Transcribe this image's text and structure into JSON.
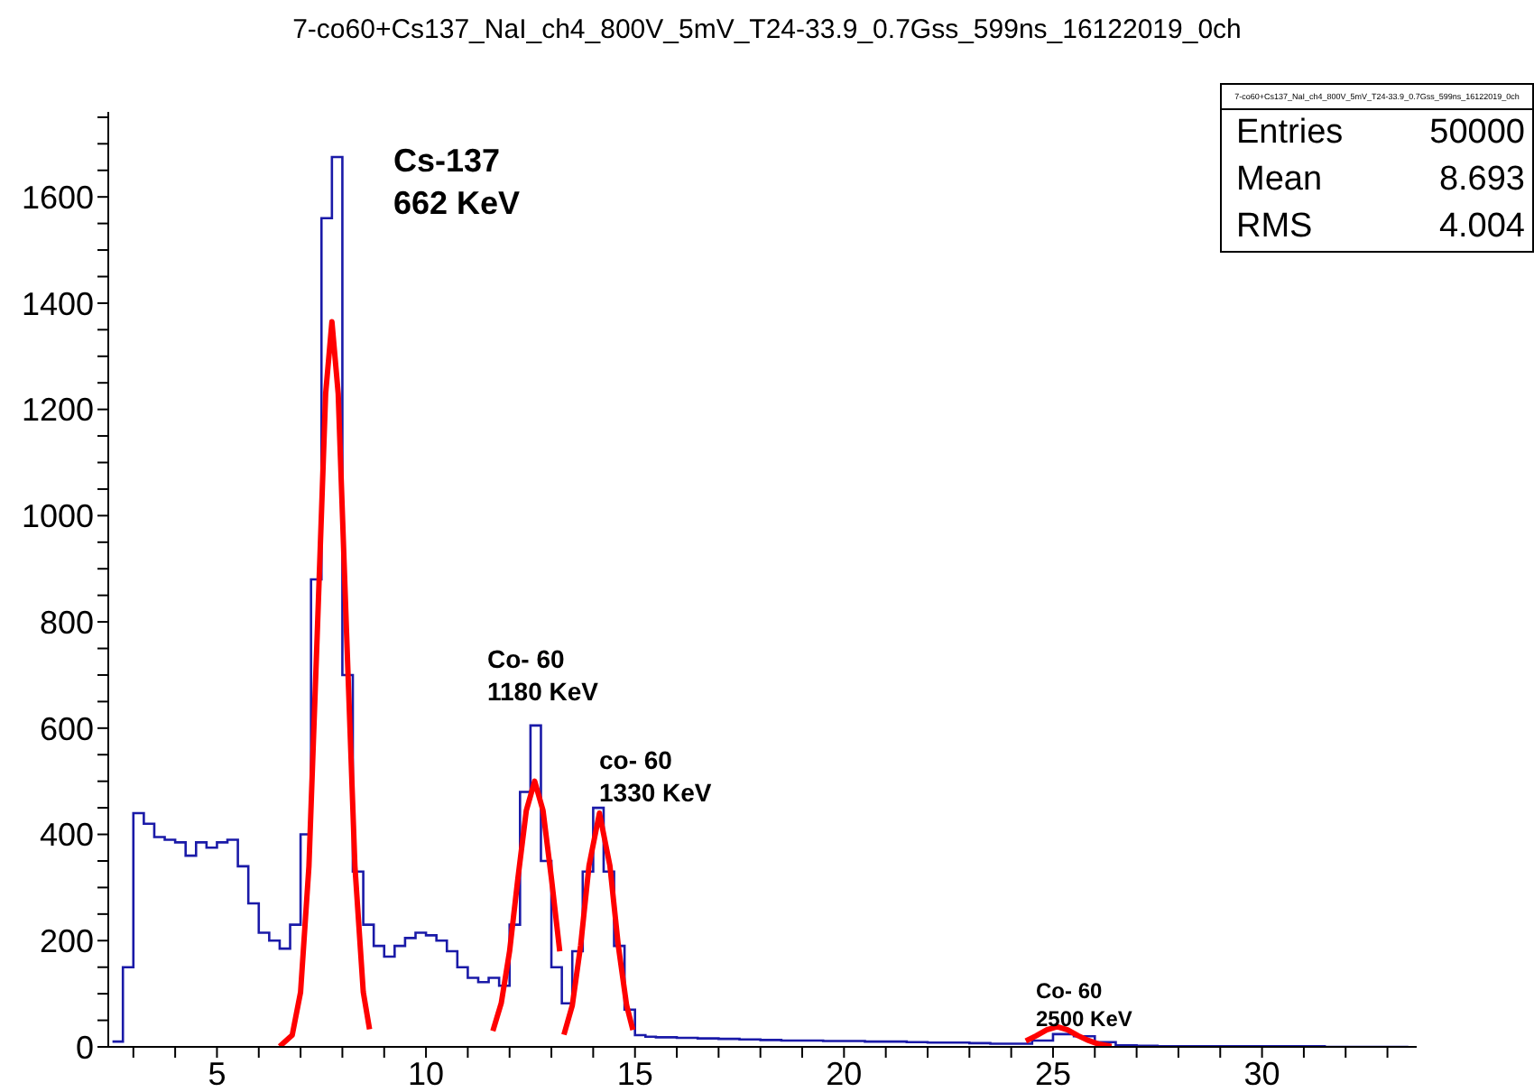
{
  "chart_data": {
    "type": "histogram",
    "title": "7-co60+Cs137_NaI_ch4_800V_5mV_T24-33.9_0.7Gss_599ns_16122019_0ch",
    "xlim": [
      2.4,
      33.7
    ],
    "xticks": [
      {
        "value": 3,
        "label": null
      },
      {
        "value": 4,
        "label": null
      },
      5,
      {
        "value": 6,
        "label": null
      },
      {
        "value": 7,
        "label": null
      },
      {
        "value": 8,
        "label": null
      },
      {
        "value": 9,
        "label": null
      },
      10,
      {
        "value": 11,
        "label": null
      },
      {
        "value": 12,
        "label": null
      },
      {
        "value": 13,
        "label": null
      },
      {
        "value": 14,
        "label": null
      },
      15,
      {
        "value": 16,
        "label": null
      },
      {
        "value": 17,
        "label": null
      },
      {
        "value": 18,
        "label": null
      },
      {
        "value": 19,
        "label": null
      },
      20,
      {
        "value": 21,
        "label": null
      },
      {
        "value": 22,
        "label": null
      },
      {
        "value": 23,
        "label": null
      },
      {
        "value": 24,
        "label": null
      },
      25,
      {
        "value": 26,
        "label": null
      },
      {
        "value": 27,
        "label": null
      },
      {
        "value": 28,
        "label": null
      },
      {
        "value": 29,
        "label": null
      },
      30,
      {
        "value": 31,
        "label": null
      },
      {
        "value": 32,
        "label": null
      },
      {
        "value": 33,
        "label": null
      }
    ],
    "ylim": [
      0,
      1760
    ],
    "yticks": [
      0,
      {
        "value": 50,
        "label": null
      },
      {
        "value": 100,
        "label": null
      },
      {
        "value": 150,
        "label": null
      },
      200,
      {
        "value": 250,
        "label": null
      },
      {
        "value": 300,
        "label": null
      },
      {
        "value": 350,
        "label": null
      },
      400,
      {
        "value": 450,
        "label": null
      },
      {
        "value": 500,
        "label": null
      },
      {
        "value": 550,
        "label": null
      },
      600,
      {
        "value": 650,
        "label": null
      },
      {
        "value": 700,
        "label": null
      },
      {
        "value": 750,
        "label": null
      },
      800,
      {
        "value": 850,
        "label": null
      },
      {
        "value": 900,
        "label": null
      },
      {
        "value": 950,
        "label": null
      },
      1000,
      {
        "value": 1050,
        "label": null
      },
      {
        "value": 1100,
        "label": null
      },
      {
        "value": 1150,
        "label": null
      },
      1200,
      {
        "value": 1250,
        "label": null
      },
      {
        "value": 1300,
        "label": null
      },
      {
        "value": 1350,
        "label": null
      },
      1400,
      {
        "value": 1450,
        "label": null
      },
      {
        "value": 1500,
        "label": null
      },
      {
        "value": 1550,
        "label": null
      },
      1600,
      {
        "value": 1650,
        "label": null
      },
      {
        "value": 1700,
        "label": null
      },
      {
        "value": 1750,
        "label": null
      }
    ],
    "series": [
      {
        "color": "#1a1aa8",
        "bins": [
          2.5,
          2.75,
          3.0,
          3.25,
          3.5,
          3.75,
          4.0,
          4.25,
          4.5,
          4.75,
          5.0,
          5.25,
          5.5,
          5.75,
          6.0,
          6.25,
          6.5,
          6.75,
          7.0,
          7.25,
          7.5,
          7.75,
          8.0,
          8.25,
          8.5,
          8.75,
          9.0,
          9.25,
          9.5,
          9.75,
          10.0,
          10.25,
          10.5,
          10.75,
          11.0,
          11.25,
          11.5,
          11.75,
          12.0,
          12.25,
          12.5,
          12.75,
          13.0,
          13.25,
          13.5,
          13.75,
          14.0,
          14.25,
          14.5,
          14.75,
          15.0,
          15.25,
          15.5,
          16,
          16.5,
          17,
          17.5,
          18,
          18.5,
          19,
          19.5,
          20,
          20.5,
          21,
          21.5,
          22,
          22.5,
          23,
          23.5,
          24,
          24.5,
          25,
          25.5,
          26,
          26.5,
          27,
          27.5,
          28.5,
          29.5,
          30.5,
          31.5,
          32.5,
          33.5
        ],
        "values": [
          10,
          150,
          440,
          420,
          395,
          390,
          385,
          360,
          385,
          375,
          385,
          390,
          340,
          270,
          215,
          200,
          185,
          230,
          400,
          880,
          1560,
          1675,
          700,
          330,
          230,
          190,
          170,
          190,
          205,
          215,
          210,
          200,
          180,
          150,
          130,
          122,
          130,
          115,
          230,
          480,
          605,
          350,
          150,
          82,
          180,
          330,
          450,
          330,
          190,
          70,
          22,
          19,
          18,
          17,
          16,
          15,
          14,
          13,
          12,
          12,
          11,
          11,
          10,
          10,
          9,
          8,
          8,
          7,
          6,
          6,
          12,
          24,
          20,
          9,
          3,
          2,
          1,
          1,
          1,
          1,
          0,
          0
        ]
      },
      {
        "type": "line",
        "color": "#ff0000",
        "x": [
          6.5,
          6.8,
          7.0,
          7.2,
          7.4,
          7.6,
          7.75,
          7.9,
          8.1,
          8.3,
          8.5,
          8.65
        ],
        "values": [
          1,
          22,
          103,
          340,
          780,
          1230,
          1365,
          1230,
          780,
          340,
          103,
          33
        ]
      },
      {
        "type": "line",
        "color": "#ff0000",
        "x": [
          11.6,
          11.8,
          12.0,
          12.2,
          12.4,
          12.6,
          12.8,
          13.0,
          13.2
        ],
        "values": [
          30,
          82,
          180,
          318,
          445,
          500,
          445,
          318,
          180
        ]
      },
      {
        "type": "line",
        "color": "#ff0000",
        "x": [
          13.3,
          13.5,
          13.7,
          13.9,
          14.15,
          14.4,
          14.6,
          14.8,
          14.95
        ],
        "values": [
          23,
          78,
          191,
          341,
          440,
          341,
          191,
          78,
          32
        ]
      },
      {
        "type": "line",
        "color": "#ff0000",
        "x": [
          24.35,
          24.6,
          24.85,
          25.1,
          25.35,
          25.6,
          25.85,
          26.1,
          26.4
        ],
        "values": [
          11,
          21,
          32,
          38,
          32,
          21,
          12,
          5,
          1
        ]
      }
    ],
    "annotations": [
      "Cs-137\n662 KeV",
      "Co- 60\n1180 KeV",
      "co- 60\n1330 KeV",
      "Co- 60\n2500 KeV",
      "7-co60+Cs137_NaI_ch4_800V_5mV_T24-33.9_0.7Gss_599ns_16122019_0ch",
      "Entries\t50000",
      "Mean\t8.693",
      "RMS\t4.004"
    ]
  }
}
